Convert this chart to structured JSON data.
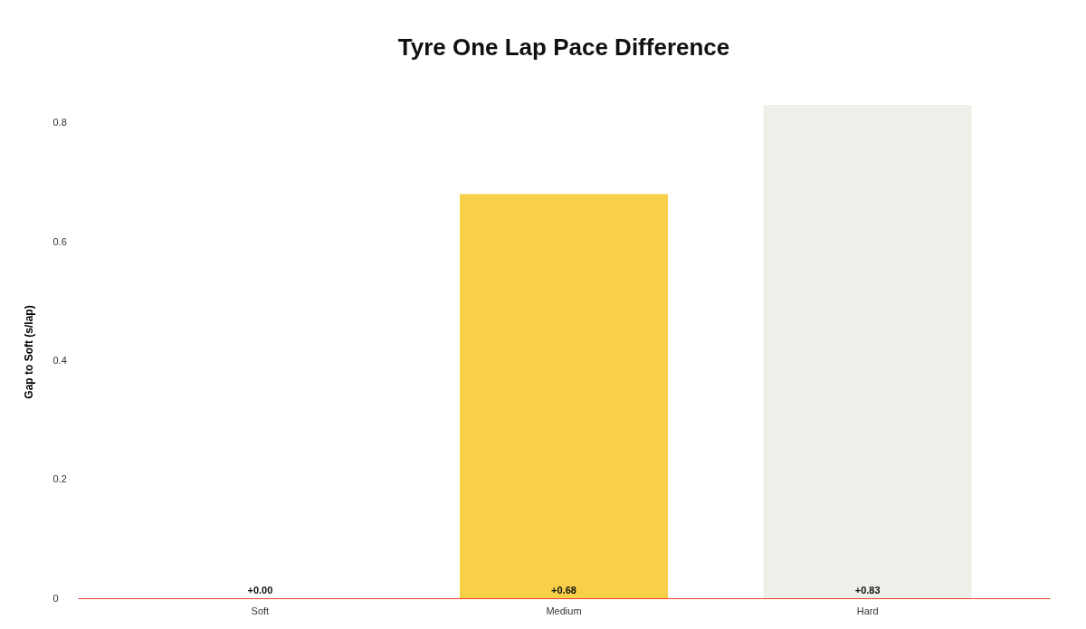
{
  "chart_data": {
    "type": "bar",
    "title": "Tyre One Lap Pace Difference",
    "ylabel": "Gap to Soft (s/lap)",
    "categories": [
      "Soft",
      "Medium",
      "Hard"
    ],
    "values": [
      0.0,
      0.68,
      0.83
    ],
    "colors": [
      "#e8402d",
      "#f8d048",
      "#efefea"
    ],
    "value_labels": [
      "+0.00",
      "+0.68",
      "+0.83"
    ],
    "ylim": [
      0,
      0.83
    ],
    "yticks": [
      0,
      0.2,
      0.4,
      0.6,
      0.8
    ],
    "grid": false
  }
}
